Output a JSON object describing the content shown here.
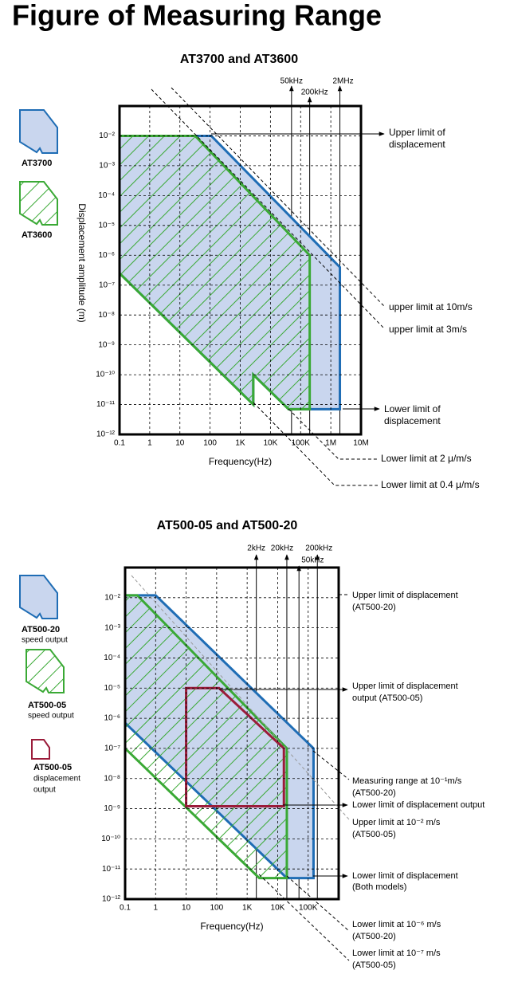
{
  "title": "Figure of Measuring Range",
  "chart_data": [
    {
      "type": "region",
      "title": "AT3700 and AT3600",
      "x_label": "Frequency(Hz)",
      "y_label": "Displacement amplitude (m)",
      "log_x": true,
      "log_y": true,
      "grid": true,
      "xlim": [
        0.1,
        10000000
      ],
      "ylim": [
        1e-12,
        0.1
      ],
      "xticks": [
        0.1,
        1,
        10,
        100,
        {
          "value": 1000,
          "label": "1K"
        },
        {
          "value": 10000,
          "label": "10K"
        },
        {
          "value": 100000,
          "label": "100K"
        },
        {
          "value": 1000000,
          "label": "1M"
        },
        {
          "value": 10000000,
          "label": "10M"
        }
      ],
      "yticks": [
        {
          "value": 0.01,
          "label": "10⁻²"
        },
        {
          "value": 0.001,
          "label": "10⁻³"
        },
        {
          "value": 0.0001,
          "label": "10⁻⁴"
        },
        {
          "value": 1e-05,
          "label": "10⁻⁵"
        },
        {
          "value": 1e-06,
          "label": "10⁻⁶"
        },
        {
          "value": 1e-07,
          "label": "10⁻⁷"
        },
        {
          "value": 1e-08,
          "label": "10⁻⁸"
        },
        {
          "value": 1e-09,
          "label": "10⁻⁹"
        },
        {
          "value": 1e-10,
          "label": "10⁻¹⁰"
        },
        {
          "value": 1e-11,
          "label": "10⁻¹¹"
        },
        {
          "value": 1e-12,
          "label": "10⁻¹²"
        }
      ],
      "markers": [
        {
          "value": 50000,
          "label": "50kHz"
        },
        {
          "value": 200000,
          "label": "200kHz"
        },
        {
          "value": 2000000,
          "label": "2MHz"
        }
      ],
      "series": [
        {
          "name": "AT3700",
          "color": "#1f6db5",
          "fill": "#c9d6ee",
          "x": [
            0.1,
            110,
            2000000,
            2000000,
            40000,
            2700,
            2700,
            0.1
          ],
          "values": [
            0.01,
            0.01,
            4e-07,
            7e-12,
            7e-12,
            1e-10,
            1e-11,
            2.5e-07
          ]
        },
        {
          "name": "AT3600",
          "color": "#3aa935",
          "hatch": true,
          "x": [
            0.1,
            32,
            200000,
            200000,
            40000,
            2700,
            2700,
            0.1
          ],
          "values": [
            0.01,
            0.01,
            1e-06,
            7e-12,
            7e-12,
            1e-10,
            1e-11,
            2.5e-07
          ]
        }
      ],
      "annotations": [
        {
          "lines": [
            "Upper limit of",
            "displacement"
          ]
        },
        {
          "lines": [
            "upper limit at 10m/s"
          ]
        },
        {
          "lines": [
            "upper limit at 3m/s"
          ]
        },
        {
          "lines": [
            "Lower limit of",
            "displacement"
          ]
        },
        {
          "lines": [
            "Lower limit  at 2 μ/m/s"
          ]
        },
        {
          "lines": [
            "Lower limit  at 0.4 μ/m/s"
          ]
        }
      ]
    },
    {
      "type": "region",
      "title": "AT500-05 and AT500-20",
      "x_label": "Frequency(Hz)",
      "log_x": true,
      "log_y": true,
      "grid": true,
      "xlim": [
        0.1,
        1000000
      ],
      "ylim": [
        1e-12,
        0.1
      ],
      "xticks": [
        0.1,
        1,
        10,
        100,
        {
          "value": 1000,
          "label": "1K"
        },
        {
          "value": 10000,
          "label": "10K"
        },
        {
          "value": 100000,
          "label": "100K"
        }
      ],
      "yticks": [
        {
          "value": 0.01,
          "label": "10⁻²"
        },
        {
          "value": 0.001,
          "label": "10⁻³"
        },
        {
          "value": 0.0001,
          "label": "10⁻⁴"
        },
        {
          "value": 1e-05,
          "label": "10⁻⁵"
        },
        {
          "value": 1e-06,
          "label": "10⁻⁶"
        },
        {
          "value": 1e-07,
          "label": "10⁻⁷"
        },
        {
          "value": 1e-08,
          "label": "10⁻⁸"
        },
        {
          "value": 1e-09,
          "label": "10⁻⁹"
        },
        {
          "value": 1e-10,
          "label": "10⁻¹⁰"
        },
        {
          "value": 1e-11,
          "label": "10⁻¹¹"
        },
        {
          "value": 1e-12,
          "label": "10⁻¹²"
        }
      ],
      "markers": [
        {
          "value": 2000,
          "label": "2kHz"
        },
        {
          "value": 20000,
          "label": "20kHz"
        },
        {
          "value": 50000,
          "label": "50kHz"
        },
        {
          "value": 200000,
          "label": "200kHz"
        }
      ],
      "series": [
        {
          "name": "AT500-20",
          "note": [
            "speed output"
          ],
          "color": "#1f6db5",
          "fill": "#c9d6ee",
          "x": [
            0.1,
            1,
            150000,
            150000,
            20000,
            0.1
          ],
          "values": [
            0.012,
            0.012,
            1e-07,
            5e-12,
            5e-12,
            7e-07
          ]
        },
        {
          "name": "AT500-05",
          "note": [
            "speed output"
          ],
          "color": "#3aa935",
          "hatch": true,
          "x": [
            0.1,
            0.25,
            20000,
            20000,
            2500,
            0.1
          ],
          "values": [
            0.012,
            0.012,
            1e-07,
            5e-12,
            5e-12,
            1e-07
          ]
        },
        {
          "name": "AT500-05",
          "note": [
            "displacement",
            "output"
          ],
          "color": "#9b1c3a",
          "x": [
            10,
            120,
            16000,
            16000,
            10
          ],
          "values": [
            1e-05,
            1e-05,
            1e-07,
            1.2e-09,
            1.2e-09
          ]
        }
      ],
      "annotations": [
        {
          "lines": [
            "Upper limit of displacement",
            "(AT500-20)"
          ]
        },
        {
          "lines": [
            "Upper limit of displacement",
            "output  (AT500-05)"
          ]
        },
        {
          "lines": [
            "Measuring range at 10⁻¹m/s",
            "(AT500-20)"
          ]
        },
        {
          "lines": [
            "Lower limit of displacement output"
          ]
        },
        {
          "lines": [
            "Upper limit at 10⁻² m/s",
            "(AT500-05)"
          ]
        },
        {
          "lines": [
            "Lower limit of displacement",
            "(Both models)"
          ]
        },
        {
          "lines": [
            "Lower limit at 10⁻⁶ m/s",
            "(AT500-20)"
          ]
        },
        {
          "lines": [
            "Lower limit at 10⁻⁷ m/s",
            "(AT500-05)"
          ]
        }
      ]
    }
  ]
}
